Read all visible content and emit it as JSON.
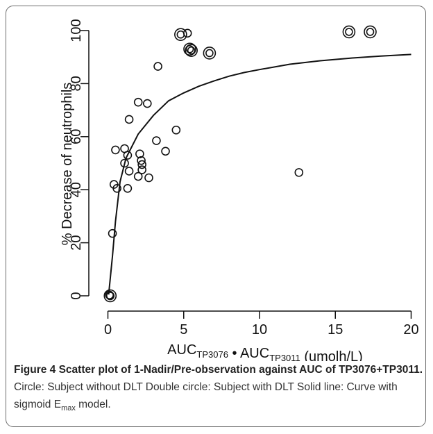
{
  "chart_data": {
    "type": "scatter",
    "xlabel": {
      "parts": [
        {
          "text": "AUC",
          "sub": "TP3076"
        },
        {
          "text": " • AUC",
          "sub": "TP3011"
        },
        {
          "text": " (umolh/L)",
          "sub": ""
        }
      ]
    },
    "ylabel": "% Decrease of neutrophils",
    "xlim": [
      0,
      20
    ],
    "ylim": [
      0,
      100
    ],
    "xticks": [
      0,
      5,
      10,
      15,
      20
    ],
    "yticks": [
      0,
      20,
      40,
      60,
      80,
      100
    ],
    "grid": false,
    "series": [
      {
        "marker": "circle",
        "points": [
          [
            0.1,
            0.3
          ],
          [
            0.15,
            0.0
          ],
          [
            0.3,
            23.5
          ],
          [
            0.4,
            42.0
          ],
          [
            0.5,
            55.0
          ],
          [
            0.6,
            40.5
          ],
          [
            1.1,
            50.0
          ],
          [
            1.1,
            55.5
          ],
          [
            1.3,
            40.5
          ],
          [
            1.3,
            53.0
          ],
          [
            1.4,
            66.5
          ],
          [
            1.4,
            47.0
          ],
          [
            2.0,
            73.0
          ],
          [
            2.0,
            45.0
          ],
          [
            2.1,
            53.5
          ],
          [
            2.2,
            51.0
          ],
          [
            2.25,
            49.5
          ],
          [
            2.25,
            47.5
          ],
          [
            2.6,
            72.5
          ],
          [
            2.7,
            44.5
          ],
          [
            3.2,
            58.5
          ],
          [
            3.3,
            86.5
          ],
          [
            3.8,
            54.5
          ],
          [
            4.5,
            62.5
          ],
          [
            12.6,
            46.5
          ]
        ]
      },
      {
        "marker": "double-circle",
        "points": [
          [
            0.15,
            0.0
          ],
          [
            4.8,
            98.5
          ],
          [
            5.4,
            93.0
          ],
          [
            5.5,
            92.5
          ],
          [
            6.7,
            91.5
          ],
          [
            15.9,
            99.5
          ],
          [
            17.3,
            99.5
          ]
        ]
      },
      {
        "marker": "single-circle-on-top",
        "points": [
          [
            5.25,
            99.0
          ]
        ]
      },
      {
        "marker": "line",
        "points": [
          [
            0.05,
            0.5
          ],
          [
            0.3,
            15.0
          ],
          [
            0.5,
            28.0
          ],
          [
            0.8,
            43.0
          ],
          [
            1.2,
            52.0
          ],
          [
            2.0,
            61.0
          ],
          [
            3.0,
            68.0
          ],
          [
            4.0,
            73.5
          ],
          [
            5.0,
            76.5
          ],
          [
            6.0,
            79.0
          ],
          [
            7.0,
            81.0
          ],
          [
            8.0,
            82.8
          ],
          [
            9.0,
            84.2
          ],
          [
            10.0,
            85.3
          ],
          [
            12.0,
            87.3
          ],
          [
            14.0,
            88.6
          ],
          [
            16.0,
            89.6
          ],
          [
            18.0,
            90.4
          ],
          [
            20.0,
            91.0
          ]
        ]
      }
    ]
  },
  "caption": {
    "title": "Figure 4 Scatter plot of 1-Nadir/Pre-observation against AUC of TP3076+TP3011.",
    "text_before": " Circle: Subject without DLT Double circle: Subject with DLT Solid line: Curve with sigmoid E",
    "sub": "max",
    "text_after": " model."
  }
}
